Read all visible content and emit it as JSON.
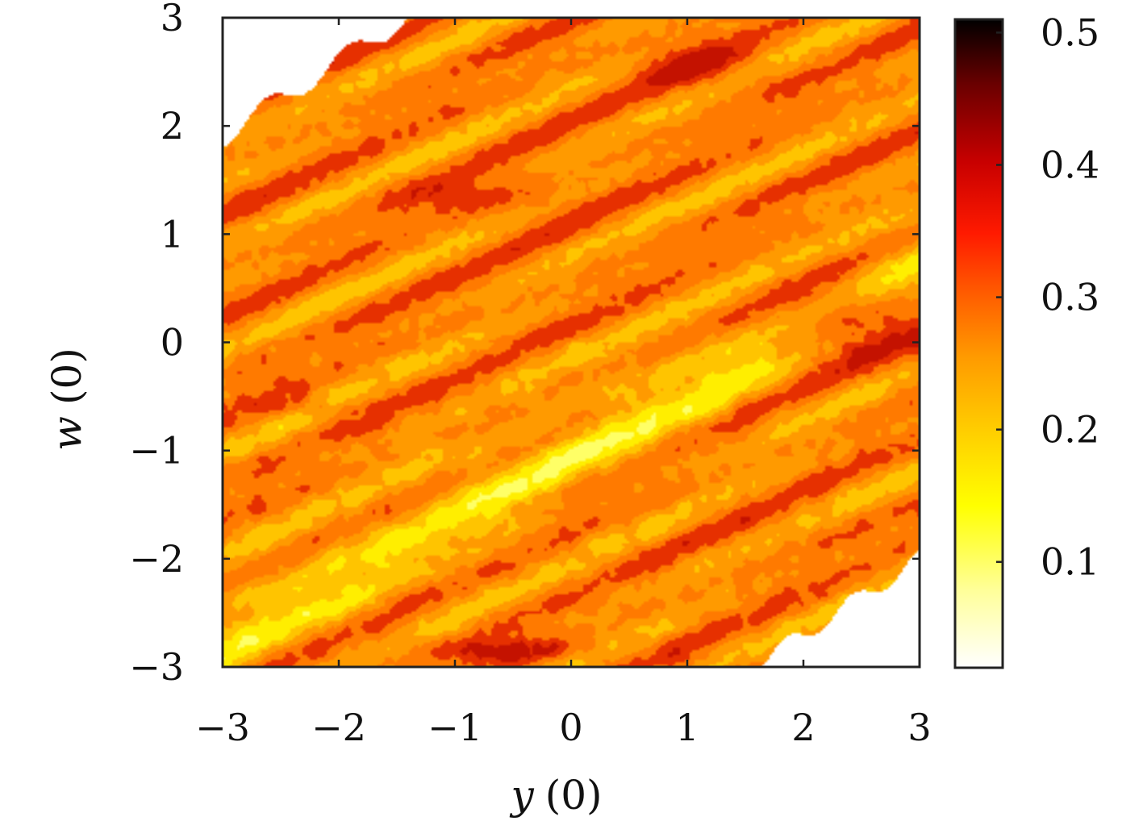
{
  "chart_data": {
    "type": "heatmap",
    "title": "",
    "xlabel_var": "y",
    "xlabel_arg": "(0)",
    "ylabel_var": "w",
    "ylabel_arg": "(0)",
    "xlim": [
      -3,
      3
    ],
    "ylim": [
      -3,
      3
    ],
    "x_ticks": [
      -3,
      -2,
      -1,
      0,
      1,
      2,
      3
    ],
    "y_ticks": [
      -3,
      -2,
      -1,
      0,
      1,
      2,
      3
    ],
    "x_tick_labels": [
      "−3",
      "−2",
      "−1",
      "0",
      "1",
      "2",
      "3"
    ],
    "y_tick_labels": [
      "−3",
      "−2",
      "−1",
      "0",
      "1",
      "2",
      "3"
    ],
    "colorbar": {
      "range": [
        0.02,
        0.51
      ],
      "ticks": [
        0.1,
        0.2,
        0.3,
        0.4,
        0.5
      ],
      "tick_labels": [
        "0.1",
        "0.2",
        "0.3",
        "0.4",
        "0.5"
      ],
      "colormap": [
        "#ffffff",
        "#ffff99",
        "#ffff00",
        "#ffd000",
        "#ff9a00",
        "#ff6600",
        "#ff2a00",
        "#d40000",
        "#8a0000",
        "#000000"
      ]
    },
    "levels": [
      0.12,
      0.16,
      0.2,
      0.24,
      0.28,
      0.32
    ],
    "level_colors": [
      "#ffff66",
      "#ffee00",
      "#ffc400",
      "#ff9a00",
      "#ff7a00",
      "#e63000",
      "#c41200"
    ],
    "regions_description": [
      {
        "label": "white (no data) corner",
        "where": "top-left, above diagonal w > y + ~4.2"
      },
      {
        "label": "white (no data) corner",
        "where": "bottom-right, below diagonal w < y - ~3.3"
      },
      {
        "label": "diagonal yellow band",
        "where": "along w ≈ y - 1.3, values ~0.12-0.16"
      },
      {
        "label": "dark red region",
        "where": "around y ∈ [1.5, 3], w ∈ [-0.3, 0.8], values ~0.32"
      },
      {
        "label": "dark red arc",
        "where": "near y ∈ [0, 2], w ∈ [2, 3], values ~0.3"
      }
    ]
  }
}
